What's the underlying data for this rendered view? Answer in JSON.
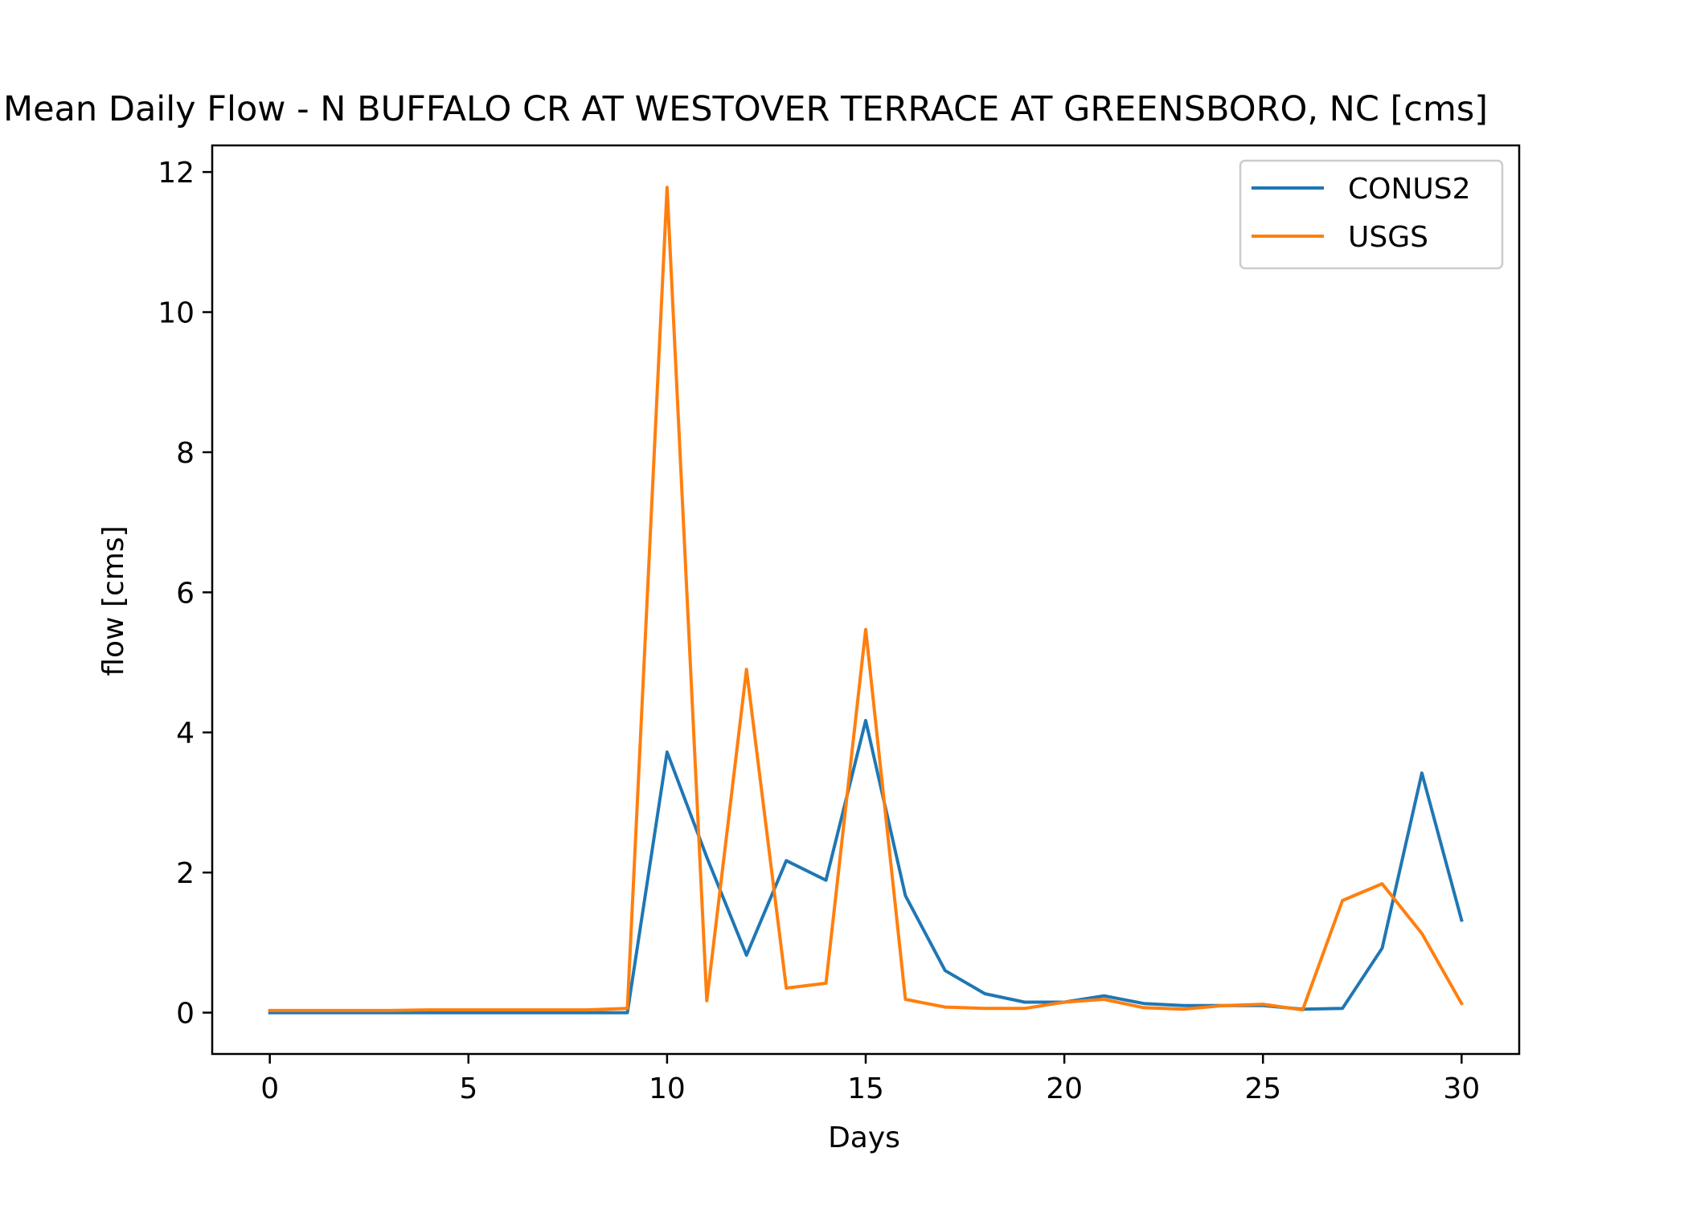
{
  "chart_data": {
    "type": "line",
    "title": "Mean Daily Flow - N BUFFALO CR AT WESTOVER TERRACE AT GREENSBORO, NC [cms]",
    "xlabel": "Days",
    "ylabel": "flow [cms]",
    "xlim": [
      -1.45,
      31.45
    ],
    "ylim": [
      -0.59,
      12.38
    ],
    "xticks": [
      0,
      5,
      10,
      15,
      20,
      25,
      30
    ],
    "yticks": [
      0,
      2,
      4,
      6,
      8,
      10,
      12
    ],
    "grid": false,
    "legend_position": "upper right",
    "x": [
      0,
      1,
      2,
      3,
      4,
      5,
      6,
      7,
      8,
      9,
      10,
      11,
      12,
      13,
      14,
      15,
      16,
      17,
      18,
      19,
      20,
      21,
      22,
      23,
      24,
      25,
      26,
      27,
      28,
      29,
      30
    ],
    "series": [
      {
        "name": "CONUS2",
        "color": "#1f77b4",
        "values": [
          0.0,
          0.0,
          0.0,
          0.0,
          0.0,
          0.0,
          0.0,
          0.0,
          0.0,
          0.0,
          3.72,
          2.22,
          0.82,
          2.17,
          1.89,
          4.17,
          1.67,
          0.6,
          0.27,
          0.15,
          0.15,
          0.24,
          0.13,
          0.1,
          0.1,
          0.1,
          0.05,
          0.06,
          0.92,
          3.42,
          1.32
        ]
      },
      {
        "name": "USGS",
        "color": "#ff7f0e",
        "values": [
          0.03,
          0.03,
          0.03,
          0.03,
          0.04,
          0.04,
          0.04,
          0.04,
          0.04,
          0.06,
          11.78,
          0.17,
          4.9,
          0.35,
          0.42,
          5.47,
          0.19,
          0.08,
          0.06,
          0.06,
          0.15,
          0.19,
          0.07,
          0.05,
          0.1,
          0.12,
          0.04,
          1.6,
          1.84,
          1.13,
          0.13
        ]
      }
    ]
  }
}
